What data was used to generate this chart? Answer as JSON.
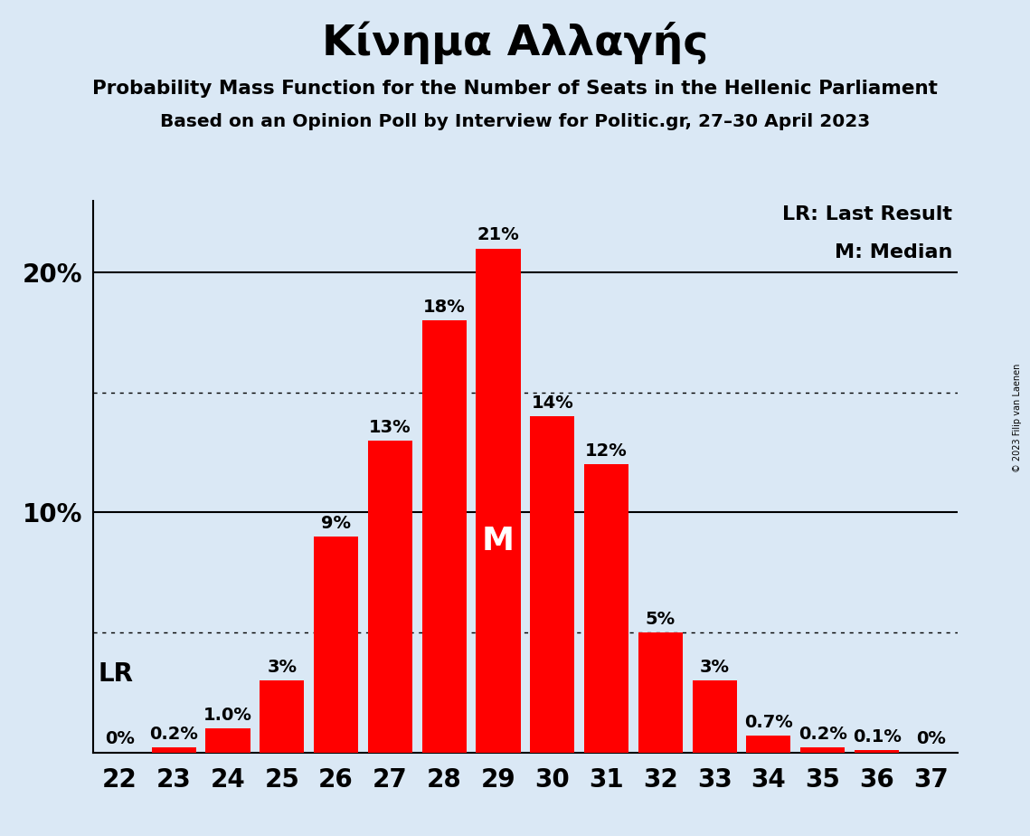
{
  "title": "Κίνημα Αλλαγής",
  "subtitle1": "Probability Mass Function for the Number of Seats in the Hellenic Parliament",
  "subtitle2": "Based on an Opinion Poll by Interview for Politic.gr, 27–30 April 2023",
  "copyright": "© 2023 Filip van Laenen",
  "seats": [
    22,
    23,
    24,
    25,
    26,
    27,
    28,
    29,
    30,
    31,
    32,
    33,
    34,
    35,
    36,
    37
  ],
  "probabilities": [
    0.0,
    0.2,
    1.0,
    3.0,
    9.0,
    13.0,
    18.0,
    21.0,
    14.0,
    12.0,
    5.0,
    3.0,
    0.7,
    0.2,
    0.1,
    0.0
  ],
  "bar_color": "#FF0000",
  "background_color": "#DAE8F5",
  "label_color_outside": "#000000",
  "label_color_inside": "#FFFFFF",
  "median_seat": 29,
  "lr_seat": 22,
  "legend_lr": "LR: Last Result",
  "legend_m": "M: Median",
  "ymax": 23,
  "dotted_lines": [
    5.0,
    15.0
  ],
  "solid_lines": [
    10.0,
    20.0
  ],
  "label_fontsize": 14,
  "tick_fontsize": 20,
  "legend_fontsize": 16,
  "lr_fontsize": 20,
  "median_fontsize": 26
}
